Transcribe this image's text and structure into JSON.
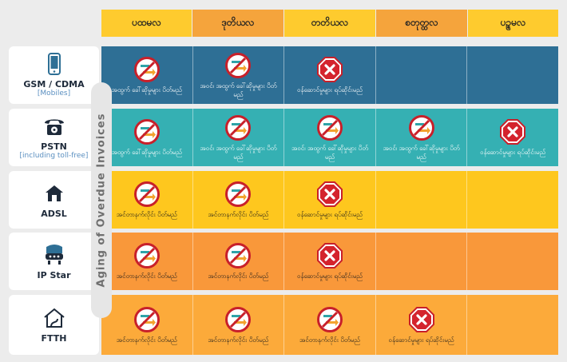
{
  "columns": [
    {
      "label": "ပထမလ",
      "color": "#fecb2e"
    },
    {
      "label": "ဒုတိယလ",
      "color": "#f5a43c"
    },
    {
      "label": "တတိယလ",
      "color": "#fecb2e"
    },
    {
      "label": "စတုတ္ထလ",
      "color": "#f5a43c"
    },
    {
      "label": "ပဉ္စမလ",
      "color": "#fecb2e"
    }
  ],
  "aging_label": "Aging of Overdue Invoices",
  "labels": {
    "out_block": "အထွက် ခေါ်ဆိုမှုများ ပိတ်မည်",
    "in_out_block": "အဝင်၊ အထွက် ခေါ်ဆိုမှုများ ပိတ်မည်",
    "cancel": "ဝန်ဆောင်မှုများ ရပ်ဆိုင်းမည်",
    "net_block": "အင်တာနက်လိုင်း ပိတ်မည်"
  },
  "rows": [
    {
      "service": "GSM / CDMA",
      "sub": "[Mobiles]",
      "icon": "mobile-phone-icon",
      "bg": "#2e6f95",
      "cells": [
        {
          "symbol": "no-call",
          "text": "အထွက် ခေါ်ဆိုမှုများ ပိတ်မည်"
        },
        {
          "symbol": "no-call",
          "text": "အဝင်၊ အထွက် ခေါ်ဆိုမှုများ ပိတ်မည်"
        },
        {
          "symbol": "cancel",
          "text": "ဝန်ဆောင်မှုများ ရပ်ဆိုင်းမည်"
        },
        {
          "symbol": "",
          "text": ""
        },
        {
          "symbol": "",
          "text": ""
        }
      ]
    },
    {
      "service": "PSTN",
      "sub": "[including toll-free]",
      "icon": "landline-phone-icon",
      "bg": "#35b0b3",
      "cells": [
        {
          "symbol": "no-call",
          "text": "အထွက် ခေါ်ဆိုမှုများ ပိတ်မည်"
        },
        {
          "symbol": "no-call",
          "text": "အဝင်၊ အထွက် ခေါ်ဆိုမှုများ ပိတ်မည်"
        },
        {
          "symbol": "no-call",
          "text": "အဝင်၊ အထွက် ခေါ်ဆိုမှုများ ပိတ်မည်"
        },
        {
          "symbol": "no-call",
          "text": "အဝင်၊ အထွက် ခေါ်ဆိုမှုများ ပိတ်မည်"
        },
        {
          "symbol": "cancel",
          "text": "ဝန်ဆောင်မှုများ ရပ်ဆိုင်းမည်"
        }
      ]
    },
    {
      "service": "ADSL",
      "sub": "",
      "icon": "adsl-house-icon",
      "bg": "#fec71e",
      "cells": [
        {
          "symbol": "no-call",
          "text": "အင်တာနက်လိုင်း ပိတ်မည်"
        },
        {
          "symbol": "no-call",
          "text": "အင်တာနက်လိုင်း ပိတ်မည်"
        },
        {
          "symbol": "cancel",
          "text": "ဝန်ဆောင်မှုများ ရပ်ဆိုင်းမည်"
        },
        {
          "symbol": "",
          "text": ""
        },
        {
          "symbol": "",
          "text": ""
        }
      ]
    },
    {
      "service": "IP Star",
      "sub": "",
      "icon": "satellite-modem-icon",
      "bg": "#f9983a",
      "cells": [
        {
          "symbol": "no-call",
          "text": "အင်တာနက်လိုင်း ပိတ်မည်"
        },
        {
          "symbol": "no-call",
          "text": "အင်တာနက်လိုင်း ပိတ်မည်"
        },
        {
          "symbol": "cancel",
          "text": "ဝန်ဆောင်မှုများ ရပ်ဆိုင်းမည်"
        },
        {
          "symbol": "",
          "text": ""
        },
        {
          "symbol": "",
          "text": ""
        }
      ]
    },
    {
      "service": "FTTH",
      "sub": "",
      "icon": "ftth-house-icon",
      "bg": "#fcaa3a",
      "cells": [
        {
          "symbol": "no-call",
          "text": "အင်တာနက်လိုင်း ပိတ်မည်"
        },
        {
          "symbol": "no-call",
          "text": "အင်တာနက်လိုင်း ပိတ်မည်"
        },
        {
          "symbol": "no-call",
          "text": "အင်တာနက်လိုင်း ပိတ်မည်"
        },
        {
          "symbol": "cancel",
          "text": "ဝန်ဆောင်မှုများ ရပ်ဆိုင်းမည်"
        },
        {
          "symbol": "",
          "text": ""
        }
      ]
    }
  ]
}
